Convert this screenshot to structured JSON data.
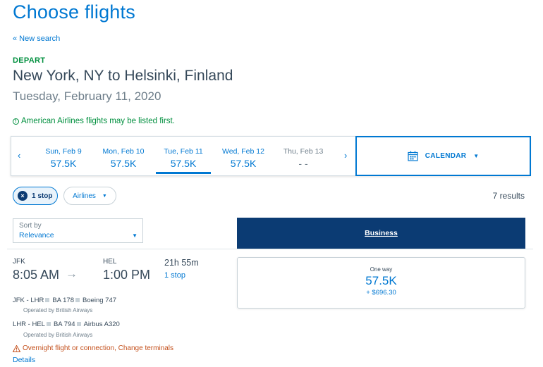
{
  "header": {
    "title": "Choose flights",
    "new_search": "« New search",
    "depart_label": "DEPART",
    "route": "New York, NY to Helsinki, Finland",
    "date": "Tuesday, February 11, 2020",
    "notice": "American Airlines flights may be listed first."
  },
  "date_strip": {
    "prev_icon": "chevron-left-icon",
    "next_icon": "chevron-right-icon",
    "days": [
      {
        "name": "Sun, Feb 9",
        "price": "57.5K"
      },
      {
        "name": "Mon, Feb 10",
        "price": "57.5K"
      },
      {
        "name": "Tue, Feb 11",
        "price": "57.5K"
      },
      {
        "name": "Wed, Feb 12",
        "price": "57.5K"
      },
      {
        "name": "Thu, Feb 13",
        "price": "- -"
      }
    ],
    "selected_index": 2,
    "calendar_label": "CALENDAR"
  },
  "filters": {
    "stops_label": "1 stop",
    "airlines_label": "Airlines",
    "results": "7 results"
  },
  "sort": {
    "label": "Sort by",
    "value": "Relevance"
  },
  "cabin": {
    "label": "Business"
  },
  "flight": {
    "origin": "JFK",
    "destination": "HEL",
    "departure": "8:05 AM",
    "arrival": "1:00 PM",
    "duration": "21h 55m",
    "stops": "1 stop",
    "segments": [
      {
        "route": "JFK - LHR",
        "flight": "BA 178",
        "aircraft": "Boeing 747",
        "operator": "Operated by British Airways"
      },
      {
        "route": "LHR - HEL",
        "flight": "BA 794",
        "aircraft": "Airbus A320",
        "operator": "Operated by British Airways"
      }
    ],
    "warning": "Overnight flight or connection, Change terminals",
    "details": "Details"
  },
  "fare": {
    "type": "One way",
    "miles": "57.5K",
    "tax": "+ $696.30"
  },
  "colors": {
    "accent": "#0078d2",
    "navy": "#0b3b73",
    "green": "#008f3e",
    "warning": "#c4501c"
  }
}
